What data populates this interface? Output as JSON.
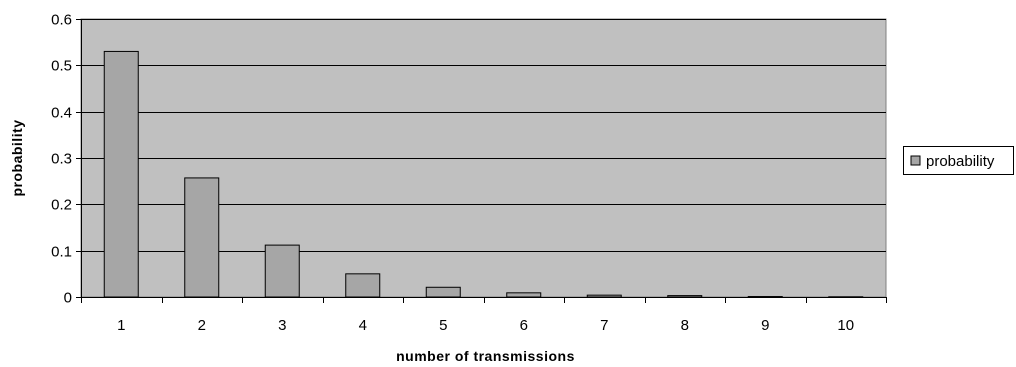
{
  "chart_data": {
    "type": "bar",
    "title": "",
    "xlabel": "number of transmissions",
    "ylabel": "probability",
    "categories": [
      "1",
      "2",
      "3",
      "4",
      "5",
      "6",
      "7",
      "8",
      "9",
      "10"
    ],
    "series": [
      {
        "name": "probability",
        "values": [
          0.53,
          0.257,
          0.112,
          0.05,
          0.021,
          0.009,
          0.004,
          0.003,
          0.001,
          0.0005
        ]
      }
    ],
    "ylim": [
      0,
      0.6
    ],
    "yticks": [
      "0",
      "0.1",
      "0.2",
      "0.3",
      "0.4",
      "0.5",
      "0.6"
    ],
    "grid": true,
    "legend_position": "right",
    "colors": {
      "plot_background": "#c0c0c0",
      "bar_fill": "#a6a6a6",
      "bar_stroke": "#000000",
      "gridline": "#000000"
    }
  }
}
